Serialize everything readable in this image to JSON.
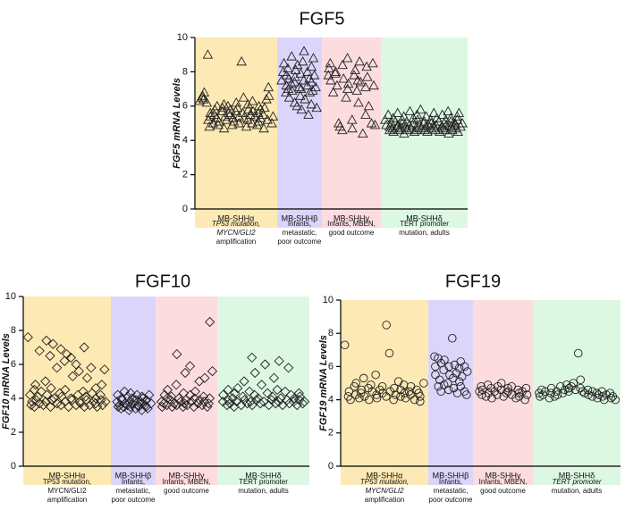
{
  "chart_data": [
    {
      "type": "scatter",
      "title": "FGF5",
      "ylabel": "FGF5 mRNA Levels",
      "ylabel_gene_italic": "FGF5",
      "ylim": [
        0,
        10
      ],
      "yticks": [
        0,
        2,
        4,
        6,
        8,
        10
      ],
      "marker": "triangle",
      "groups": [
        {
          "name": "MB-SHHα",
          "color": "#fde9b4",
          "description": [
            "TP53 mutation,",
            "MYCN/GLI2",
            "amplification"
          ],
          "italic_lines": [
            0,
            1
          ],
          "values": [
            6.3,
            6.5,
            6.6,
            6.4,
            6.8,
            6.2,
            9.0,
            5.2,
            4.8,
            5.4,
            5.6,
            5.0,
            5.5,
            5.8,
            6.0,
            5.3,
            4.9,
            5.1,
            5.7,
            5.9,
            6.1,
            5.4,
            4.7,
            5.2,
            5.6,
            6.0,
            5.8,
            5.5,
            5.3,
            4.9,
            5.1,
            5.7,
            6.2,
            5.9,
            5.4,
            5.0,
            8.6,
            6.5,
            5.6,
            5.3,
            4.8,
            5.2,
            5.8,
            6.1,
            5.5,
            5.0,
            5.7,
            6.3,
            5.4,
            4.9,
            5.1,
            5.6,
            6.0,
            5.8,
            5.3,
            4.7,
            5.5,
            5.9,
            6.4,
            5.2,
            7.1,
            6.6,
            5.0,
            5.4
          ]
        },
        {
          "name": "MB-SHHβ",
          "color": "#dcd5fb",
          "description": [
            "Infants,",
            "metastatic,",
            "poor outcome"
          ],
          "italic_lines": [],
          "values": [
            7.5,
            8.5,
            8.0,
            7.2,
            6.8,
            7.8,
            8.2,
            7.0,
            6.5,
            7.6,
            8.9,
            7.3,
            6.9,
            7.4,
            8.1,
            6.2,
            7.7,
            6.0,
            8.4,
            7.1,
            6.6,
            7.9,
            5.8,
            7.0,
            8.6,
            9.2,
            7.5,
            6.4,
            7.2,
            8.0,
            5.5,
            6.8,
            7.6,
            8.3,
            6.1,
            7.4,
            8.8,
            6.9,
            7.8,
            5.9,
            7.1
          ]
        },
        {
          "name": "MB-SHHγ",
          "color": "#fcdcdf",
          "description": [
            "Infants, MBEN,",
            "good outcome"
          ],
          "italic_lines": [],
          "values": [
            7.8,
            8.2,
            7.5,
            8.5,
            6.8,
            7.9,
            8.0,
            7.2,
            5.0,
            4.8,
            4.6,
            7.6,
            8.4,
            6.5,
            7.0,
            8.8,
            7.3,
            5.2,
            4.7,
            7.8,
            8.1,
            6.9,
            7.5,
            6.2,
            8.6,
            7.4,
            4.4,
            7.1,
            5.5,
            8.3,
            7.7,
            6.0,
            5.0,
            8.5,
            7.2,
            4.9
          ]
        },
        {
          "name": "MB-SHHδ",
          "color": "#ddf8e2",
          "description": [
            "TERT promoter",
            "mutation, adults"
          ],
          "italic_lines": [],
          "values": [
            5.2,
            4.9,
            4.6,
            5.5,
            4.8,
            5.0,
            4.7,
            5.3,
            4.5,
            5.1,
            4.8,
            5.6,
            4.9,
            4.6,
            5.2,
            4.7,
            5.0,
            4.4,
            5.4,
            4.8,
            5.1,
            4.6,
            5.7,
            4.9,
            4.7,
            5.3,
            4.5,
            5.0,
            4.8,
            5.5,
            4.6,
            5.2,
            4.9,
            4.7,
            5.8,
            5.0,
            4.6,
            5.1,
            4.8,
            5.4,
            4.5,
            4.9,
            5.2,
            4.7,
            5.0,
            5.6,
            4.8,
            4.6,
            5.3,
            4.9,
            5.1,
            4.5,
            4.8,
            5.5,
            4.7,
            5.0,
            4.6,
            5.2,
            4.9,
            5.7,
            4.4,
            5.1,
            4.8,
            5.3,
            4.6,
            5.0,
            4.9,
            5.4,
            4.7,
            5.2,
            4.5,
            5.6,
            4.8,
            5.0
          ]
        }
      ]
    },
    {
      "type": "scatter",
      "title": "FGF10",
      "ylabel": "FGF10 mRNA Levels",
      "ylabel_gene_italic": "FGF10",
      "ylim": [
        0,
        10
      ],
      "yticks": [
        0,
        2,
        4,
        6,
        8,
        10
      ],
      "marker": "diamond",
      "groups": [
        {
          "name": "MB-SHHα",
          "color": "#fde9b4",
          "description": [
            "TP53 mutation,",
            "MYCN/GLI2",
            "amplification"
          ],
          "italic_lines": [],
          "values": [
            7.6,
            3.6,
            4.2,
            3.8,
            4.5,
            3.5,
            4.8,
            3.9,
            4.1,
            6.8,
            3.7,
            4.4,
            3.6,
            5.0,
            7.4,
            3.8,
            4.2,
            6.5,
            3.5,
            4.6,
            3.9,
            7.2,
            4.0,
            5.8,
            3.7,
            4.3,
            6.9,
            3.6,
            4.1,
            6.2,
            3.8,
            4.5,
            6.6,
            3.5,
            4.0,
            6.4,
            3.9,
            5.3,
            6.0,
            3.6,
            4.2,
            3.8,
            5.6,
            3.7,
            4.4,
            7.0,
            3.5,
            4.1,
            3.9,
            5.2,
            3.6,
            4.3,
            5.8,
            3.8,
            4.0,
            3.7,
            4.6,
            3.5,
            4.2,
            3.9,
            4.8,
            3.6,
            5.7,
            3.8
          ]
        },
        {
          "name": "MB-SHHβ",
          "color": "#dcd5fb",
          "description": [
            "Infants,",
            "metastatic,",
            "poor outcome"
          ],
          "italic_lines": [],
          "values": [
            3.8,
            3.5,
            4.2,
            3.6,
            4.0,
            3.4,
            3.9,
            4.4,
            3.5,
            3.7,
            4.1,
            3.6,
            3.3,
            4.3,
            3.8,
            3.5,
            4.0,
            3.7,
            3.4,
            3.9,
            4.2,
            3.6,
            3.5,
            3.8,
            4.1,
            3.3,
            3.7,
            4.0,
            3.6,
            3.5,
            3.9,
            3.4,
            4.2,
            3.7
          ]
        },
        {
          "name": "MB-SHHγ",
          "color": "#fcdcdf",
          "description": [
            "Infants, MBEN,",
            "good outcome"
          ],
          "italic_lines": [],
          "values": [
            3.8,
            3.5,
            4.2,
            3.7,
            4.0,
            3.6,
            4.5,
            3.9,
            3.5,
            4.1,
            3.7,
            4.8,
            3.6,
            6.6,
            4.0,
            3.8,
            3.5,
            4.3,
            3.7,
            5.5,
            3.9,
            3.6,
            4.2,
            5.9,
            3.8,
            4.0,
            3.5,
            4.4,
            3.7,
            3.9,
            5.0,
            3.6,
            4.1,
            3.8,
            5.2,
            3.5,
            3.7,
            8.5,
            4.0,
            5.6
          ]
        },
        {
          "name": "MB-SHHδ",
          "color": "#ddf8e2",
          "description": [
            "TERT promoter",
            "mutation, adults"
          ],
          "italic_lines": [],
          "values": [
            3.8,
            4.2,
            3.6,
            4.5,
            3.9,
            3.7,
            4.0,
            3.5,
            4.3,
            3.8,
            4.6,
            3.6,
            4.1,
            3.9,
            5.0,
            3.7,
            4.4,
            3.8,
            6.4,
            3.6,
            4.2,
            5.5,
            3.9,
            4.0,
            3.7,
            4.8,
            3.8,
            6.0,
            4.3,
            3.6,
            3.9,
            4.1,
            5.2,
            3.7,
            4.5,
            3.8,
            6.2,
            4.0,
            3.6,
            4.4,
            3.9,
            5.8,
            3.7,
            4.2,
            3.8,
            4.0,
            3.6,
            4.3,
            3.9,
            4.1,
            3.7,
            3.8
          ]
        }
      ]
    },
    {
      "type": "scatter",
      "title": "FGF19",
      "ylabel": "FGF19 mRNA Levels",
      "ylabel_gene_italic": "FGF19",
      "ylim": [
        0,
        10
      ],
      "yticks": [
        0,
        2,
        4,
        6,
        8,
        10
      ],
      "marker": "circle",
      "groups": [
        {
          "name": "MB-SHHα",
          "color": "#fde9b4",
          "description": [
            "TP53 mutation,",
            "MYCN/GLI2",
            "amplification"
          ],
          "italic_lines": [
            0,
            1
          ],
          "values": [
            7.3,
            4.2,
            4.5,
            4.0,
            4.8,
            4.3,
            5.0,
            4.1,
            4.6,
            4.4,
            5.3,
            4.2,
            4.7,
            4.0,
            4.9,
            4.5,
            5.5,
            4.3,
            4.1,
            4.6,
            4.8,
            4.4,
            8.5,
            4.2,
            6.8,
            4.5,
            4.0,
            4.7,
            4.3,
            5.1,
            4.6,
            4.2,
            4.4,
            4.9,
            4.1,
            4.5,
            4.3,
            4.8,
            4.0,
            4.6,
            4.4,
            3.9,
            4.2,
            5.0
          ]
        },
        {
          "name": "MB-SHHβ",
          "color": "#dcd5fb",
          "description": [
            "Infants,",
            "metastatic,",
            "poor outcome"
          ],
          "italic_lines": [],
          "values": [
            6.6,
            5.5,
            6.0,
            4.8,
            6.5,
            5.2,
            4.5,
            6.2,
            5.8,
            4.9,
            6.4,
            5.0,
            4.6,
            5.5,
            6.0,
            7.7,
            5.3,
            4.7,
            6.1,
            5.6,
            4.4,
            5.9,
            5.1,
            6.3,
            4.8,
            5.4,
            6.0,
            4.5,
            5.7,
            4.3
          ]
        },
        {
          "name": "MB-SHHγ",
          "color": "#fcdcdf",
          "description": [
            "Infants, MBEN,",
            "good outcome"
          ],
          "italic_lines": [],
          "values": [
            4.5,
            4.8,
            4.3,
            4.6,
            4.2,
            4.9,
            4.4,
            4.7,
            4.1,
            4.5,
            4.8,
            4.3,
            5.0,
            4.6,
            4.2,
            4.4,
            4.7,
            4.5,
            4.3,
            4.8,
            4.1,
            4.6,
            4.4,
            4.2,
            4.5,
            4.0,
            4.7,
            4.3
          ]
        },
        {
          "name": "MB-SHHδ",
          "color": "#ddf8e2",
          "description": [
            "TERT promoter",
            "mutation, adults"
          ],
          "italic_lines": [
            0
          ],
          "values": [
            4.4,
            4.2,
            4.6,
            4.3,
            4.5,
            4.1,
            4.4,
            4.7,
            4.2,
            4.5,
            4.3,
            4.8,
            4.4,
            4.6,
            4.9,
            4.5,
            4.7,
            4.8,
            5.0,
            4.6,
            6.8,
            4.7,
            5.2,
            4.5,
            4.4,
            4.6,
            4.3,
            4.5,
            4.2,
            4.4,
            4.1,
            4.3,
            4.5,
            4.2,
            4.0,
            4.3,
            4.4,
            4.1,
            4.2,
            4.0
          ]
        }
      ]
    }
  ]
}
